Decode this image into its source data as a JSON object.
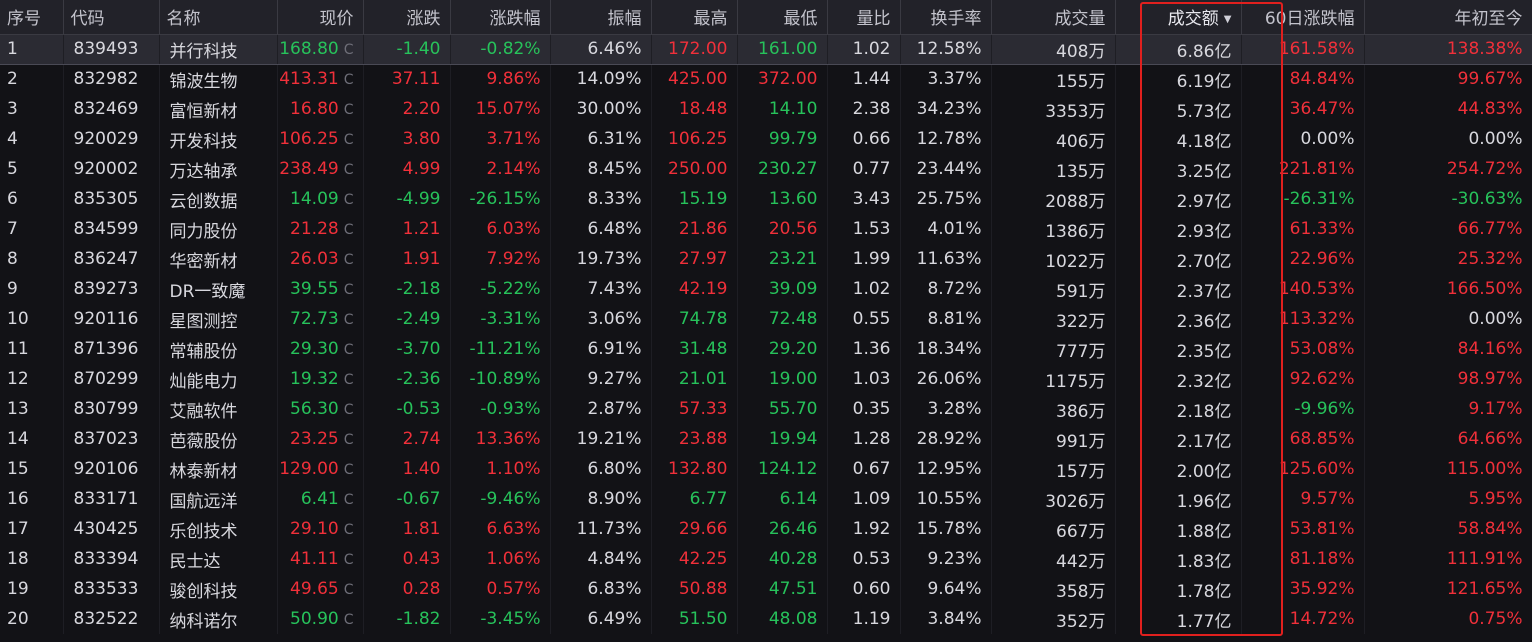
{
  "colors": {
    "up": "#f0303a",
    "down": "#27c25b",
    "flat": "#d8d8de",
    "highlight": "#e0201e"
  },
  "price_suffix": "C",
  "sort_indicator": "descending",
  "columns": [
    "序号",
    "代码",
    "名称",
    "现价",
    "涨跌",
    "涨跌幅",
    "振幅",
    "最高",
    "最低",
    "量比",
    "换手率",
    "成交量",
    "成交额",
    "60日涨跌幅",
    "年初至今"
  ],
  "rows": [
    {
      "no": "1",
      "code": "839493",
      "name": "并行科技",
      "price": "168.80",
      "change": "-1.40",
      "pct": "-0.82%",
      "amp": "6.46%",
      "high": "172.00",
      "low": "161.00",
      "vr": "1.02",
      "turnover": "12.58%",
      "volume": "408万",
      "amount": "6.86亿",
      "d60": "161.58%",
      "ytd": "138.38%",
      "c": {
        "price": "down",
        "change": "down",
        "pct": "down",
        "high": "up",
        "low": "down",
        "d60": "up",
        "ytd": "up"
      }
    },
    {
      "no": "2",
      "code": "832982",
      "name": "锦波生物",
      "price": "413.31",
      "change": "37.11",
      "pct": "9.86%",
      "amp": "14.09%",
      "high": "425.00",
      "low": "372.00",
      "vr": "1.44",
      "turnover": "3.37%",
      "volume": "155万",
      "amount": "6.19亿",
      "d60": "84.84%",
      "ytd": "99.67%",
      "c": {
        "price": "up",
        "change": "up",
        "pct": "up",
        "high": "up",
        "low": "up",
        "d60": "up",
        "ytd": "up"
      }
    },
    {
      "no": "3",
      "code": "832469",
      "name": "富恒新材",
      "price": "16.80",
      "change": "2.20",
      "pct": "15.07%",
      "amp": "30.00%",
      "high": "18.48",
      "low": "14.10",
      "vr": "2.38",
      "turnover": "34.23%",
      "volume": "3353万",
      "amount": "5.73亿",
      "d60": "36.47%",
      "ytd": "44.83%",
      "c": {
        "price": "up",
        "change": "up",
        "pct": "up",
        "high": "up",
        "low": "down",
        "d60": "up",
        "ytd": "up"
      }
    },
    {
      "no": "4",
      "code": "920029",
      "name": "开发科技",
      "price": "106.25",
      "change": "3.80",
      "pct": "3.71%",
      "amp": "6.31%",
      "high": "106.25",
      "low": "99.79",
      "vr": "0.66",
      "turnover": "12.78%",
      "volume": "406万",
      "amount": "4.18亿",
      "d60": "0.00%",
      "ytd": "0.00%",
      "c": {
        "price": "up",
        "change": "up",
        "pct": "up",
        "high": "up",
        "low": "down",
        "d60": "flat",
        "ytd": "flat"
      }
    },
    {
      "no": "5",
      "code": "920002",
      "name": "万达轴承",
      "price": "238.49",
      "change": "4.99",
      "pct": "2.14%",
      "amp": "8.45%",
      "high": "250.00",
      "low": "230.27",
      "vr": "0.77",
      "turnover": "23.44%",
      "volume": "135万",
      "amount": "3.25亿",
      "d60": "221.81%",
      "ytd": "254.72%",
      "c": {
        "price": "up",
        "change": "up",
        "pct": "up",
        "high": "up",
        "low": "down",
        "d60": "up",
        "ytd": "up"
      }
    },
    {
      "no": "6",
      "code": "835305",
      "name": "云创数据",
      "price": "14.09",
      "change": "-4.99",
      "pct": "-26.15%",
      "amp": "8.33%",
      "high": "15.19",
      "low": "13.60",
      "vr": "3.43",
      "turnover": "25.75%",
      "volume": "2088万",
      "amount": "2.97亿",
      "d60": "-26.31%",
      "ytd": "-30.63%",
      "c": {
        "price": "down",
        "change": "down",
        "pct": "down",
        "high": "down",
        "low": "down",
        "d60": "down",
        "ytd": "down"
      }
    },
    {
      "no": "7",
      "code": "834599",
      "name": "同力股份",
      "price": "21.28",
      "change": "1.21",
      "pct": "6.03%",
      "amp": "6.48%",
      "high": "21.86",
      "low": "20.56",
      "vr": "1.53",
      "turnover": "4.01%",
      "volume": "1386万",
      "amount": "2.93亿",
      "d60": "61.33%",
      "ytd": "66.77%",
      "c": {
        "price": "up",
        "change": "up",
        "pct": "up",
        "high": "up",
        "low": "up",
        "d60": "up",
        "ytd": "up"
      }
    },
    {
      "no": "8",
      "code": "836247",
      "name": "华密新材",
      "price": "26.03",
      "change": "1.91",
      "pct": "7.92%",
      "amp": "19.73%",
      "high": "27.97",
      "low": "23.21",
      "vr": "1.99",
      "turnover": "11.63%",
      "volume": "1022万",
      "amount": "2.70亿",
      "d60": "22.96%",
      "ytd": "25.32%",
      "c": {
        "price": "up",
        "change": "up",
        "pct": "up",
        "high": "up",
        "low": "down",
        "d60": "up",
        "ytd": "up"
      }
    },
    {
      "no": "9",
      "code": "839273",
      "name": "DR一致魔",
      "price": "39.55",
      "change": "-2.18",
      "pct": "-5.22%",
      "amp": "7.43%",
      "high": "42.19",
      "low": "39.09",
      "vr": "1.02",
      "turnover": "8.72%",
      "volume": "591万",
      "amount": "2.37亿",
      "d60": "140.53%",
      "ytd": "166.50%",
      "c": {
        "price": "down",
        "change": "down",
        "pct": "down",
        "high": "up",
        "low": "down",
        "d60": "up",
        "ytd": "up"
      }
    },
    {
      "no": "10",
      "code": "920116",
      "name": "星图测控",
      "price": "72.73",
      "change": "-2.49",
      "pct": "-3.31%",
      "amp": "3.06%",
      "high": "74.78",
      "low": "72.48",
      "vr": "0.55",
      "turnover": "8.81%",
      "volume": "322万",
      "amount": "2.36亿",
      "d60": "113.32%",
      "ytd": "0.00%",
      "c": {
        "price": "down",
        "change": "down",
        "pct": "down",
        "high": "down",
        "low": "down",
        "d60": "up",
        "ytd": "flat"
      }
    },
    {
      "no": "11",
      "code": "871396",
      "name": "常辅股份",
      "price": "29.30",
      "change": "-3.70",
      "pct": "-11.21%",
      "amp": "6.91%",
      "high": "31.48",
      "low": "29.20",
      "vr": "1.36",
      "turnover": "18.34%",
      "volume": "777万",
      "amount": "2.35亿",
      "d60": "53.08%",
      "ytd": "84.16%",
      "c": {
        "price": "down",
        "change": "down",
        "pct": "down",
        "high": "down",
        "low": "down",
        "d60": "up",
        "ytd": "up"
      }
    },
    {
      "no": "12",
      "code": "870299",
      "name": "灿能电力",
      "price": "19.32",
      "change": "-2.36",
      "pct": "-10.89%",
      "amp": "9.27%",
      "high": "21.01",
      "low": "19.00",
      "vr": "1.03",
      "turnover": "26.06%",
      "volume": "1175万",
      "amount": "2.32亿",
      "d60": "92.62%",
      "ytd": "98.97%",
      "c": {
        "price": "down",
        "change": "down",
        "pct": "down",
        "high": "down",
        "low": "down",
        "d60": "up",
        "ytd": "up"
      }
    },
    {
      "no": "13",
      "code": "830799",
      "name": "艾融软件",
      "price": "56.30",
      "change": "-0.53",
      "pct": "-0.93%",
      "amp": "2.87%",
      "high": "57.33",
      "low": "55.70",
      "vr": "0.35",
      "turnover": "3.28%",
      "volume": "386万",
      "amount": "2.18亿",
      "d60": "-9.96%",
      "ytd": "9.17%",
      "c": {
        "price": "down",
        "change": "down",
        "pct": "down",
        "high": "up",
        "low": "down",
        "d60": "down",
        "ytd": "up"
      }
    },
    {
      "no": "14",
      "code": "837023",
      "name": "芭薇股份",
      "price": "23.25",
      "change": "2.74",
      "pct": "13.36%",
      "amp": "19.21%",
      "high": "23.88",
      "low": "19.94",
      "vr": "1.28",
      "turnover": "28.92%",
      "volume": "991万",
      "amount": "2.17亿",
      "d60": "68.85%",
      "ytd": "64.66%",
      "c": {
        "price": "up",
        "change": "up",
        "pct": "up",
        "high": "up",
        "low": "down",
        "d60": "up",
        "ytd": "up"
      }
    },
    {
      "no": "15",
      "code": "920106",
      "name": "林泰新材",
      "price": "129.00",
      "change": "1.40",
      "pct": "1.10%",
      "amp": "6.80%",
      "high": "132.80",
      "low": "124.12",
      "vr": "0.67",
      "turnover": "12.95%",
      "volume": "157万",
      "amount": "2.00亿",
      "d60": "125.60%",
      "ytd": "115.00%",
      "c": {
        "price": "up",
        "change": "up",
        "pct": "up",
        "high": "up",
        "low": "down",
        "d60": "up",
        "ytd": "up"
      }
    },
    {
      "no": "16",
      "code": "833171",
      "name": "国航远洋",
      "price": "6.41",
      "change": "-0.67",
      "pct": "-9.46%",
      "amp": "8.90%",
      "high": "6.77",
      "low": "6.14",
      "vr": "1.09",
      "turnover": "10.55%",
      "volume": "3026万",
      "amount": "1.96亿",
      "d60": "9.57%",
      "ytd": "5.95%",
      "c": {
        "price": "down",
        "change": "down",
        "pct": "down",
        "high": "down",
        "low": "down",
        "d60": "up",
        "ytd": "up"
      }
    },
    {
      "no": "17",
      "code": "430425",
      "name": "乐创技术",
      "price": "29.10",
      "change": "1.81",
      "pct": "6.63%",
      "amp": "11.73%",
      "high": "29.66",
      "low": "26.46",
      "vr": "1.92",
      "turnover": "15.78%",
      "volume": "667万",
      "amount": "1.88亿",
      "d60": "53.81%",
      "ytd": "58.84%",
      "c": {
        "price": "up",
        "change": "up",
        "pct": "up",
        "high": "up",
        "low": "down",
        "d60": "up",
        "ytd": "up"
      }
    },
    {
      "no": "18",
      "code": "833394",
      "name": "民士达",
      "price": "41.11",
      "change": "0.43",
      "pct": "1.06%",
      "amp": "4.84%",
      "high": "42.25",
      "low": "40.28",
      "vr": "0.53",
      "turnover": "9.23%",
      "volume": "442万",
      "amount": "1.83亿",
      "d60": "81.18%",
      "ytd": "111.91%",
      "c": {
        "price": "up",
        "change": "up",
        "pct": "up",
        "high": "up",
        "low": "down",
        "d60": "up",
        "ytd": "up"
      }
    },
    {
      "no": "19",
      "code": "833533",
      "name": "骏创科技",
      "price": "49.65",
      "change": "0.28",
      "pct": "0.57%",
      "amp": "6.83%",
      "high": "50.88",
      "low": "47.51",
      "vr": "0.60",
      "turnover": "9.64%",
      "volume": "358万",
      "amount": "1.78亿",
      "d60": "35.92%",
      "ytd": "121.65%",
      "c": {
        "price": "up",
        "change": "up",
        "pct": "up",
        "high": "up",
        "low": "down",
        "d60": "up",
        "ytd": "up"
      }
    },
    {
      "no": "20",
      "code": "832522",
      "name": "纳科诺尔",
      "price": "50.90",
      "change": "-1.82",
      "pct": "-3.45%",
      "amp": "6.49%",
      "high": "51.50",
      "low": "48.08",
      "vr": "1.19",
      "turnover": "3.84%",
      "volume": "352万",
      "amount": "1.77亿",
      "d60": "14.72%",
      "ytd": "0.75%",
      "c": {
        "price": "down",
        "change": "down",
        "pct": "down",
        "high": "down",
        "low": "down",
        "d60": "up",
        "ytd": "up"
      }
    }
  ]
}
